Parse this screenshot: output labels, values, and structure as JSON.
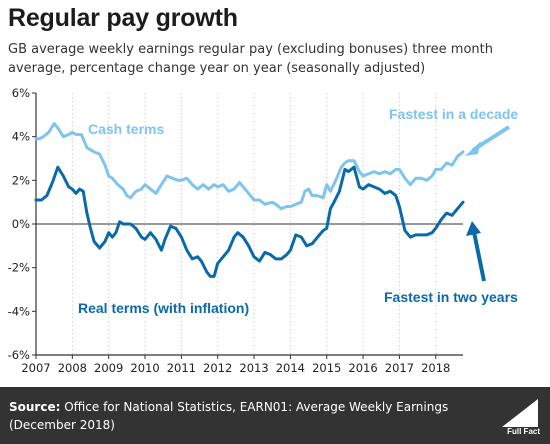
{
  "header": {
    "title": "Regular pay growth",
    "subtitle": "GB average weekly earnings regular pay (excluding bonuses) three month average, percentage change year on year (seasonally adjusted)"
  },
  "footer": {
    "source_label": "Source:",
    "source_text": "Office for National Statistics, EARN01: Average Weekly Earnings (December 2018)",
    "logo_text": "Full Fact"
  },
  "colors": {
    "cash": "#7fc4ef",
    "real": "#0a6aa8",
    "axis": "#333333",
    "grid": "#c0c0c0",
    "footer_bg": "#333333"
  },
  "chart_data": {
    "type": "line",
    "title": "Regular pay growth",
    "xlabel": "",
    "ylabel": "",
    "xlim": [
      2007,
      2018.75
    ],
    "ylim": [
      -6,
      6
    ],
    "y_ticks": [
      6,
      4,
      2,
      0,
      -2,
      -4,
      -6
    ],
    "y_tick_labels": [
      "6%",
      "4%",
      "2%",
      "0%",
      "-2%",
      "-4%",
      "-6%"
    ],
    "x_ticks": [
      2007,
      2008,
      2009,
      2010,
      2011,
      2012,
      2013,
      2014,
      2015,
      2016,
      2017,
      2018
    ],
    "x_tick_labels": [
      "2007",
      "2008",
      "2009",
      "2010",
      "2011",
      "2012",
      "2013",
      "2014",
      "2015",
      "2016",
      "2017",
      "2018"
    ],
    "grid": "vertical dotted",
    "series": [
      {
        "name": "Cash terms",
        "x": [
          2007.0,
          2007.1,
          2007.2,
          2007.35,
          2007.5,
          2007.6,
          2007.75,
          2007.9,
          2008.0,
          2008.1,
          2008.25,
          2008.4,
          2008.5,
          2008.6,
          2008.75,
          2008.9,
          2009.0,
          2009.1,
          2009.25,
          2009.4,
          2009.5,
          2009.6,
          2009.75,
          2009.9,
          2010.0,
          2010.15,
          2010.3,
          2010.45,
          2010.6,
          2010.75,
          2010.9,
          2011.0,
          2011.15,
          2011.3,
          2011.45,
          2011.6,
          2011.75,
          2011.9,
          2012.0,
          2012.15,
          2012.3,
          2012.45,
          2012.6,
          2012.75,
          2012.9,
          2013.0,
          2013.15,
          2013.3,
          2013.5,
          2013.6,
          2013.75,
          2013.9,
          2014.0,
          2014.15,
          2014.3,
          2014.4,
          2014.5,
          2014.6,
          2014.75,
          2014.9,
          2015.0,
          2015.1,
          2015.25,
          2015.4,
          2015.5,
          2015.6,
          2015.75,
          2015.9,
          2016.0,
          2016.15,
          2016.3,
          2016.45,
          2016.6,
          2016.75,
          2016.9,
          2017.0,
          2017.15,
          2017.3,
          2017.45,
          2017.6,
          2017.75,
          2017.9,
          2018.0,
          2018.15,
          2018.3,
          2018.45,
          2018.6,
          2018.75
        ],
        "values": [
          3.9,
          3.9,
          4.0,
          4.2,
          4.6,
          4.4,
          4.0,
          4.1,
          4.2,
          4.1,
          4.1,
          3.5,
          3.4,
          3.3,
          3.2,
          2.7,
          2.2,
          2.1,
          1.8,
          1.6,
          1.3,
          1.2,
          1.5,
          1.6,
          1.8,
          1.6,
          1.4,
          1.8,
          2.2,
          2.1,
          2.0,
          2.0,
          2.1,
          1.8,
          1.6,
          1.8,
          1.6,
          1.8,
          1.7,
          1.8,
          1.5,
          1.6,
          1.9,
          1.6,
          1.3,
          1.1,
          1.1,
          0.9,
          1.0,
          0.9,
          0.7,
          0.8,
          0.8,
          0.9,
          1.0,
          1.5,
          1.6,
          1.3,
          1.3,
          1.2,
          1.8,
          1.5,
          2.0,
          2.6,
          2.8,
          2.9,
          2.9,
          2.4,
          2.2,
          2.3,
          2.4,
          2.3,
          2.4,
          2.3,
          2.5,
          2.5,
          2.1,
          1.8,
          2.1,
          2.1,
          2.0,
          2.2,
          2.5,
          2.5,
          2.8,
          2.7,
          3.1,
          3.3
        ]
      },
      {
        "name": "Real terms (with inflation)",
        "x": [
          2007.0,
          2007.15,
          2007.3,
          2007.45,
          2007.6,
          2007.75,
          2007.9,
          2008.0,
          2008.1,
          2008.2,
          2008.3,
          2008.4,
          2008.5,
          2008.6,
          2008.75,
          2008.9,
          2009.0,
          2009.1,
          2009.2,
          2009.3,
          2009.4,
          2009.5,
          2009.6,
          2009.75,
          2009.9,
          2010.0,
          2010.15,
          2010.3,
          2010.45,
          2010.55,
          2010.7,
          2010.85,
          2011.0,
          2011.15,
          2011.3,
          2011.45,
          2011.55,
          2011.7,
          2011.8,
          2011.9,
          2012.0,
          2012.15,
          2012.3,
          2012.45,
          2012.55,
          2012.7,
          2012.85,
          2013.0,
          2013.15,
          2013.3,
          2013.45,
          2013.6,
          2013.75,
          2013.9,
          2014.0,
          2014.15,
          2014.3,
          2014.45,
          2014.6,
          2014.75,
          2014.9,
          2015.0,
          2015.1,
          2015.2,
          2015.35,
          2015.5,
          2015.6,
          2015.75,
          2015.9,
          2016.0,
          2016.15,
          2016.3,
          2016.45,
          2016.6,
          2016.75,
          2016.9,
          2017.0,
          2017.15,
          2017.3,
          2017.45,
          2017.6,
          2017.75,
          2017.9,
          2018.0,
          2018.15,
          2018.3,
          2018.45,
          2018.6,
          2018.75
        ],
        "values": [
          1.1,
          1.1,
          1.3,
          1.9,
          2.6,
          2.2,
          1.7,
          1.6,
          1.4,
          1.6,
          1.5,
          0.5,
          -0.2,
          -0.8,
          -1.1,
          -0.8,
          -0.4,
          -0.6,
          -0.4,
          0.1,
          0.0,
          0.0,
          0.0,
          -0.2,
          -0.6,
          -0.7,
          -0.4,
          -0.7,
          -1.2,
          -0.7,
          -0.1,
          -0.2,
          -0.6,
          -1.2,
          -1.6,
          -1.5,
          -1.7,
          -2.2,
          -2.4,
          -2.4,
          -1.8,
          -1.5,
          -1.2,
          -0.6,
          -0.4,
          -0.6,
          -1.0,
          -1.5,
          -1.7,
          -1.3,
          -1.4,
          -1.6,
          -1.6,
          -1.4,
          -1.2,
          -0.5,
          -0.6,
          -1.0,
          -0.9,
          -0.6,
          -0.3,
          -0.2,
          0.7,
          1.0,
          1.5,
          2.5,
          2.4,
          2.6,
          1.7,
          1.6,
          1.8,
          1.7,
          1.6,
          1.4,
          1.5,
          1.3,
          0.8,
          -0.3,
          -0.6,
          -0.5,
          -0.5,
          -0.5,
          -0.4,
          -0.2,
          0.2,
          0.5,
          0.4,
          0.7,
          1.0
        ]
      }
    ],
    "annotations": [
      {
        "text": "Cash terms",
        "series": "Cash terms"
      },
      {
        "text": "Real terms (with inflation)",
        "series": "Real terms (with inflation)"
      },
      {
        "text": "Fastest in a decade",
        "series": "Cash terms"
      },
      {
        "text": "Fastest in two years",
        "series": "Real terms (with inflation)"
      }
    ]
  }
}
